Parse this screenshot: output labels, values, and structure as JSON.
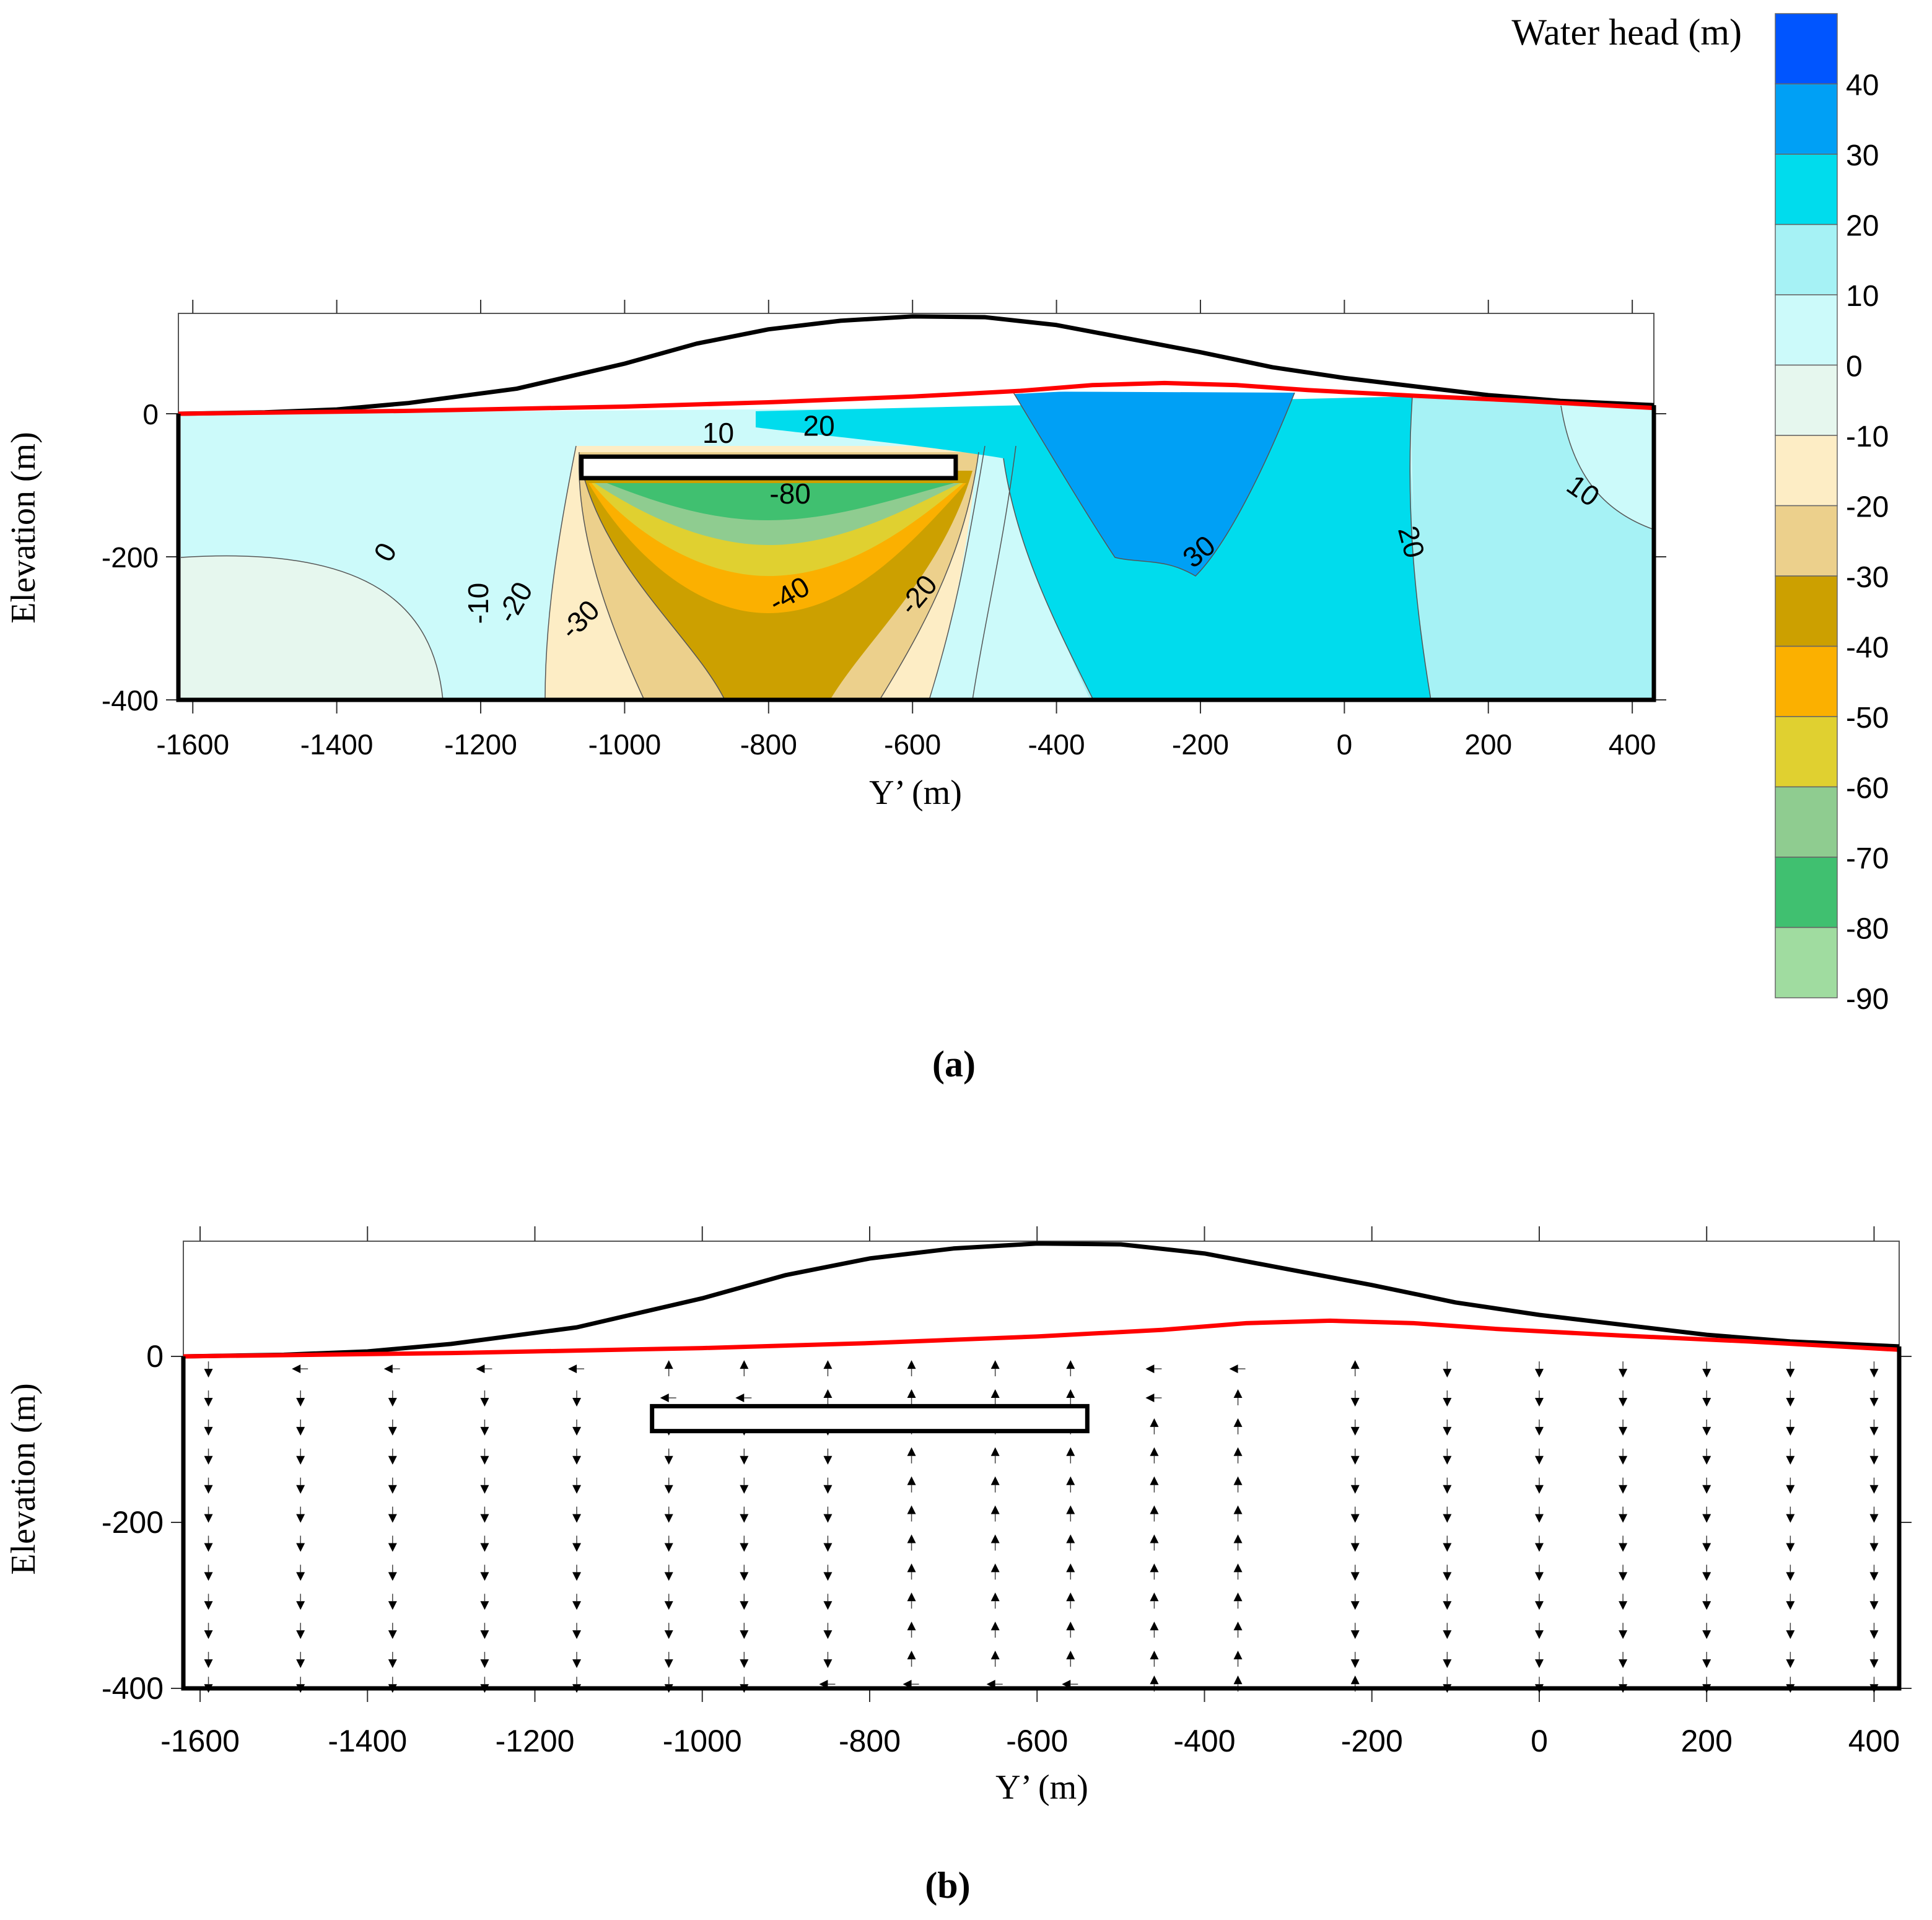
{
  "chart_data": [
    {
      "id": "a",
      "type": "contour",
      "panel_label": "a",
      "xlabel": "Y’ (m)",
      "ylabel": "Elevation (m)",
      "xlim": [
        -1620,
        430
      ],
      "ylim": [
        -400,
        140
      ],
      "x_ticks": [
        -1600,
        -1400,
        -1200,
        -1000,
        -800,
        -600,
        -400,
        -200,
        0,
        200,
        400
      ],
      "y_ticks": [
        0,
        -200,
        -400
      ],
      "ground_surface": [
        [
          -1620,
          0
        ],
        [
          -1500,
          2
        ],
        [
          -1400,
          6
        ],
        [
          -1300,
          15
        ],
        [
          -1150,
          35
        ],
        [
          -1000,
          70
        ],
        [
          -900,
          98
        ],
        [
          -800,
          118
        ],
        [
          -700,
          130
        ],
        [
          -600,
          136
        ],
        [
          -500,
          135
        ],
        [
          -400,
          124
        ],
        [
          -300,
          105
        ],
        [
          -200,
          86
        ],
        [
          -100,
          65
        ],
        [
          0,
          50
        ],
        [
          100,
          38
        ],
        [
          200,
          26
        ],
        [
          300,
          18
        ],
        [
          430,
          12
        ]
      ],
      "water_table": [
        [
          -1620,
          0
        ],
        [
          -1300,
          4
        ],
        [
          -1000,
          10
        ],
        [
          -800,
          16
        ],
        [
          -600,
          24
        ],
        [
          -450,
          32
        ],
        [
          -350,
          40
        ],
        [
          -250,
          43
        ],
        [
          -150,
          40
        ],
        [
          -50,
          33
        ],
        [
          100,
          25
        ],
        [
          250,
          18
        ],
        [
          430,
          8
        ]
      ],
      "excavation": {
        "y_from": -1060,
        "y_to": -540,
        "z_top": -60,
        "z_bottom": -90
      },
      "contour_labels": [
        {
          "text": "10",
          "x": -870,
          "z": -30,
          "rot": 0
        },
        {
          "text": "20",
          "x": -730,
          "z": -20,
          "rot": 0
        },
        {
          "text": "-80",
          "x": -770,
          "z": -115,
          "rot": 0
        },
        {
          "text": "0",
          "x": -1330,
          "z": -195,
          "rot": -60
        },
        {
          "text": "-10",
          "x": -1200,
          "z": -265,
          "rot": -90
        },
        {
          "text": "-20",
          "x": -1150,
          "z": -265,
          "rot": -60
        },
        {
          "text": "-30",
          "x": -1060,
          "z": -290,
          "rot": -45
        },
        {
          "text": "-40",
          "x": -770,
          "z": -255,
          "rot": -30
        },
        {
          "text": "-20",
          "x": -590,
          "z": -255,
          "rot": -50
        },
        {
          "text": "30",
          "x": -200,
          "z": -195,
          "rot": -40
        },
        {
          "text": "20",
          "x": 90,
          "z": -180,
          "rot": 75
        },
        {
          "text": "10",
          "x": 330,
          "z": -110,
          "rot": 35
        }
      ]
    },
    {
      "id": "b",
      "type": "vector_field",
      "panel_label": "b",
      "xlabel": "Y’ (m)",
      "ylabel": "Elevation (m)",
      "xlim": [
        -1620,
        430
      ],
      "ylim": [
        -400,
        140
      ],
      "x_ticks": [
        -1600,
        -1400,
        -1200,
        -1000,
        -800,
        -600,
        -400,
        -200,
        0,
        200,
        400
      ],
      "y_ticks": [
        0,
        -200,
        -400
      ],
      "ground_surface": [
        [
          -1620,
          0
        ],
        [
          -1500,
          2
        ],
        [
          -1400,
          6
        ],
        [
          -1300,
          15
        ],
        [
          -1150,
          35
        ],
        [
          -1000,
          70
        ],
        [
          -900,
          98
        ],
        [
          -800,
          118
        ],
        [
          -700,
          130
        ],
        [
          -600,
          136
        ],
        [
          -500,
          135
        ],
        [
          -400,
          124
        ],
        [
          -300,
          105
        ],
        [
          -200,
          86
        ],
        [
          -100,
          65
        ],
        [
          0,
          50
        ],
        [
          100,
          38
        ],
        [
          200,
          26
        ],
        [
          300,
          18
        ],
        [
          430,
          12
        ]
      ],
      "water_table": [
        [
          -1620,
          0
        ],
        [
          -1300,
          4
        ],
        [
          -1000,
          10
        ],
        [
          -800,
          16
        ],
        [
          -600,
          24
        ],
        [
          -450,
          32
        ],
        [
          -350,
          40
        ],
        [
          -250,
          43
        ],
        [
          -150,
          40
        ],
        [
          -50,
          33
        ],
        [
          100,
          25
        ],
        [
          250,
          18
        ],
        [
          430,
          8
        ]
      ],
      "excavation": {
        "y_from": -1060,
        "y_to": -540,
        "z_top": -60,
        "z_bottom": -90
      },
      "vector_columns": [
        {
          "x": -1590,
          "dirs": [
            "down",
            "down",
            "down",
            "down",
            "down",
            "down",
            "down",
            "down",
            "down",
            "down",
            "down",
            "right"
          ]
        },
        {
          "x": -1480,
          "dirs": [
            "left",
            "down",
            "down",
            "down",
            "down",
            "down",
            "down",
            "down",
            "down",
            "down",
            "down",
            "right"
          ]
        },
        {
          "x": -1370,
          "dirs": [
            "left",
            "down",
            "down",
            "down",
            "down",
            "down",
            "down",
            "down",
            "down",
            "down",
            "down",
            "right"
          ]
        },
        {
          "x": -1260,
          "dirs": [
            "left",
            "down",
            "down",
            "down",
            "down",
            "down",
            "down",
            "down",
            "down",
            "down",
            "down",
            "right"
          ]
        },
        {
          "x": -1150,
          "dirs": [
            "left",
            "down",
            "down",
            "down",
            "down",
            "down",
            "down",
            "down",
            "down",
            "down",
            "down",
            "right"
          ]
        },
        {
          "x": -1040,
          "dirs": [
            "up",
            "left",
            "down",
            "down",
            "down",
            "down",
            "down",
            "down",
            "down",
            "down",
            "down",
            "right"
          ]
        },
        {
          "x": -950,
          "dirs": [
            "up",
            "left",
            "down",
            "down",
            "down",
            "down",
            "down",
            "down",
            "down",
            "down",
            "down",
            "right"
          ]
        },
        {
          "x": -850,
          "dirs": [
            "up",
            "up",
            "down",
            "down",
            "down",
            "down",
            "down",
            "down",
            "down",
            "down",
            "down",
            "left"
          ]
        },
        {
          "x": -750,
          "dirs": [
            "up",
            "up",
            "up",
            "up",
            "up",
            "up",
            "up",
            "up",
            "up",
            "up",
            "up",
            "left"
          ]
        },
        {
          "x": -650,
          "dirs": [
            "up",
            "up",
            "up",
            "up",
            "up",
            "up",
            "up",
            "up",
            "up",
            "up",
            "up",
            "left"
          ]
        },
        {
          "x": -560,
          "dirs": [
            "up",
            "up",
            "up",
            "up",
            "up",
            "up",
            "up",
            "up",
            "up",
            "up",
            "up",
            "left"
          ]
        },
        {
          "x": -460,
          "dirs": [
            "left",
            "left",
            "up",
            "up",
            "up",
            "up",
            "up",
            "up",
            "up",
            "up",
            "up",
            "up"
          ]
        },
        {
          "x": -360,
          "dirs": [
            "left",
            "up",
            "up",
            "up",
            "up",
            "up",
            "up",
            "up",
            "up",
            "up",
            "up",
            "up"
          ]
        },
        {
          "x": -220,
          "dirs": [
            "up",
            "down",
            "down",
            "down",
            "down",
            "down",
            "down",
            "down",
            "down",
            "down",
            "down",
            "up"
          ]
        },
        {
          "x": -110,
          "dirs": [
            "down",
            "down",
            "down",
            "down",
            "down",
            "down",
            "down",
            "down",
            "down",
            "down",
            "down",
            "right"
          ]
        },
        {
          "x": 0,
          "dirs": [
            "down",
            "down",
            "down",
            "down",
            "down",
            "down",
            "down",
            "down",
            "down",
            "down",
            "down",
            "right"
          ]
        },
        {
          "x": 100,
          "dirs": [
            "down",
            "down",
            "down",
            "down",
            "down",
            "down",
            "down",
            "down",
            "down",
            "down",
            "down",
            "right"
          ]
        },
        {
          "x": 200,
          "dirs": [
            "down",
            "down",
            "down",
            "down",
            "down",
            "down",
            "down",
            "down",
            "down",
            "down",
            "down",
            "right"
          ]
        },
        {
          "x": 300,
          "dirs": [
            "down",
            "down",
            "down",
            "down",
            "down",
            "down",
            "down",
            "down",
            "down",
            "down",
            "down",
            "right"
          ]
        },
        {
          "x": 400,
          "dirs": [
            "down",
            "down",
            "down",
            "down",
            "down",
            "down",
            "down",
            "down",
            "down",
            "down",
            "down",
            "right"
          ]
        }
      ]
    }
  ],
  "colorbar": {
    "title": "Water head (m)",
    "levels": [
      40,
      30,
      20,
      10,
      0,
      -10,
      -20,
      -30,
      -40,
      -50,
      -60,
      -70,
      -80,
      -90
    ],
    "colors": [
      "#0055ff",
      "#00a0f5",
      "#00dced",
      "#a6f2f5",
      "#ccfafa",
      "#e6f7ee",
      "#fdedc5",
      "#ecd08c",
      "#cca000",
      "#fbb000",
      "#e0d030",
      "#8fcc90",
      "#40c070",
      "#a0dca0"
    ]
  },
  "labels": {
    "panel_a": "(a)",
    "panel_b": "(b)"
  }
}
